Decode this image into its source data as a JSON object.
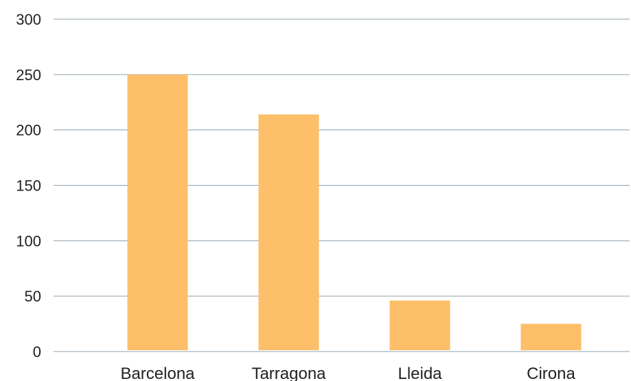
{
  "chart_data": {
    "type": "bar",
    "categories": [
      "Barcelona",
      "Tarragona",
      "Lleida",
      "Cirona"
    ],
    "values": [
      250,
      214,
      46,
      25
    ],
    "ylim": [
      0,
      300
    ],
    "yticks": [
      0,
      50,
      100,
      150,
      200,
      250,
      300
    ],
    "ytick_labels": [
      "0",
      "50",
      "100",
      "150",
      "200",
      "250",
      "300"
    ],
    "grid": true,
    "legend": "none",
    "colors": {
      "bar": "#fdbf69",
      "grid": "#8fa1ad",
      "text": "#222222"
    }
  }
}
